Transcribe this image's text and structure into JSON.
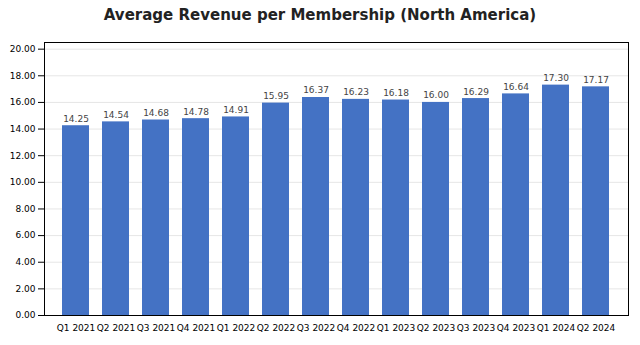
{
  "chart_data": {
    "type": "bar",
    "title": "Average Revenue per Membership (North America)",
    "categories": [
      "Q1 2021",
      "Q2 2021",
      "Q3 2021",
      "Q4 2021",
      "Q1 2022",
      "Q2 2022",
      "Q3 2022",
      "Q4 2022",
      "Q1 2023",
      "Q2 2023",
      "Q3 2023",
      "Q4 2023",
      "Q1 2024",
      "Q2 2024"
    ],
    "values": [
      14.25,
      14.54,
      14.68,
      14.78,
      14.91,
      15.95,
      16.37,
      16.23,
      16.18,
      16.0,
      16.29,
      16.64,
      17.3,
      17.17
    ],
    "value_labels": [
      "14.25",
      "14.54",
      "14.68",
      "14.78",
      "14.91",
      "15.95",
      "16.37",
      "16.23",
      "16.18",
      "16.00",
      "16.29",
      "16.64",
      "17.30",
      "17.17"
    ],
    "data_labels": true,
    "color": "#4472C4",
    "ylim": [
      0,
      20.5
    ],
    "yticks": [
      {
        "value": 0,
        "label": "0.00"
      },
      {
        "value": 2,
        "label": "2.00"
      },
      {
        "value": 4,
        "label": "4.00"
      },
      {
        "value": 6,
        "label": "6.00"
      },
      {
        "value": 8,
        "label": "8.00"
      },
      {
        "value": 10,
        "label": "10.00"
      },
      {
        "value": 12,
        "label": "12.00"
      },
      {
        "value": 14,
        "label": "14.00"
      },
      {
        "value": 16,
        "label": "16.00"
      },
      {
        "value": 18,
        "label": "18.00"
      },
      {
        "value": 20,
        "label": "20.00"
      }
    ],
    "grid": true
  }
}
